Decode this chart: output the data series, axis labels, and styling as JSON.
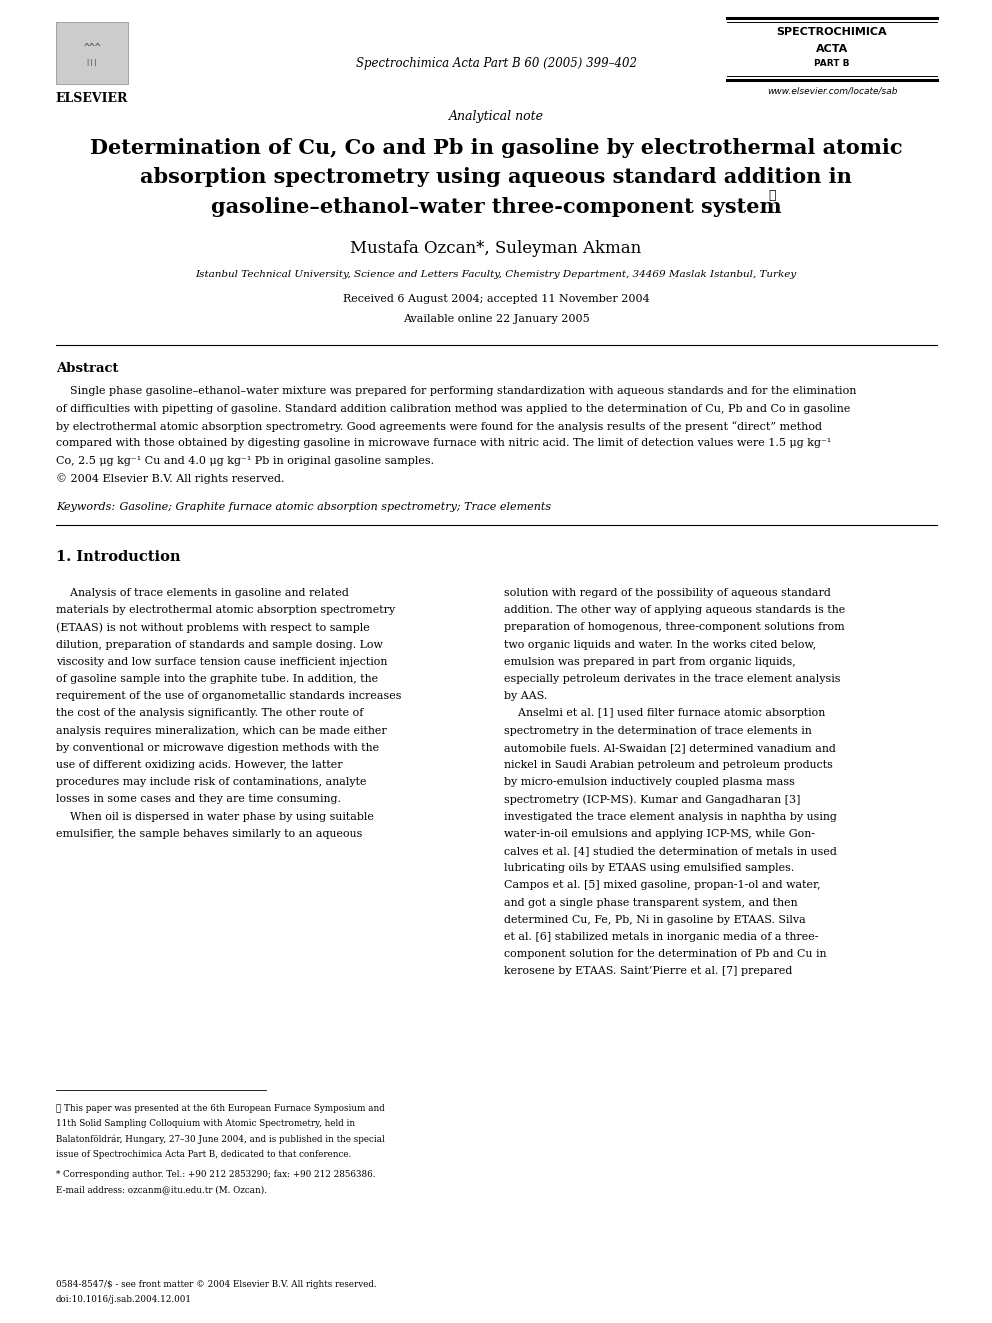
{
  "bg_color": "#ffffff",
  "page_width": 9.92,
  "page_height": 13.23,
  "journal_name_line1": "SPECTROCHIMICA",
  "journal_name_line2": "ACTA",
  "journal_name_line3": "PART B",
  "journal_citation": "Spectrochimica Acta Part B 60 (2005) 399–402",
  "website": "www.elsevier.com/locate/sab",
  "article_type": "Analytical note",
  "title_line1": "Determination of Cu, Co and Pb in gasoline by electrothermal atomic",
  "title_line2": "absorption spectrometry using aqueous standard addition in",
  "title_line3": "gasoline–ethanol–water three-component system",
  "title_star": "☆",
  "authors": "Mustafa Ozcan*, Suleyman Akman",
  "affiliation": "Istanbul Technical University, Science and Letters Faculty, Chemistry Department, 34469 Maslak Istanbul, Turkey",
  "received": "Received 6 August 2004; accepted 11 November 2004",
  "available": "Available online 22 January 2005",
  "abstract_title": "Abstract",
  "abstract_lines": [
    "    Single phase gasoline–ethanol–water mixture was prepared for performing standardization with aqueous standards and for the elimination",
    "of difficulties with pipetting of gasoline. Standard addition calibration method was applied to the determination of Cu, Pb and Co in gasoline",
    "by electrothermal atomic absorption spectrometry. Good agreements were found for the analysis results of the present “direct” method",
    "compared with those obtained by digesting gasoline in microwave furnace with nitric acid. The limit of detection values were 1.5 μg kg⁻¹",
    "Co, 2.5 μg kg⁻¹ Cu and 4.0 μg kg⁻¹ Pb in original gasoline samples.",
    "© 2004 Elsevier B.V. All rights reserved."
  ],
  "keywords_italic": "Keywords:",
  "keywords_rest": " Gasoline; Graphite furnace atomic absorption spectrometry; Trace elements",
  "section1_title": "1. Introduction",
  "left_col": [
    "    Analysis of trace elements in gasoline and related",
    "materials by electrothermal atomic absorption spectrometry",
    "(ETAAS) is not without problems with respect to sample",
    "dilution, preparation of standards and sample dosing. Low",
    "viscosity and low surface tension cause inefficient injection",
    "of gasoline sample into the graphite tube. In addition, the",
    "requirement of the use of organometallic standards increases",
    "the cost of the analysis significantly. The other route of",
    "analysis requires mineralization, which can be made either",
    "by conventional or microwave digestion methods with the",
    "use of different oxidizing acids. However, the latter",
    "procedures may include risk of contaminations, analyte",
    "losses in some cases and they are time consuming.",
    "    When oil is dispersed in water phase by using suitable",
    "emulsifier, the sample behaves similarly to an aqueous"
  ],
  "right_col": [
    "solution with regard of the possibility of aqueous standard",
    "addition. The other way of applying aqueous standards is the",
    "preparation of homogenous, three-component solutions from",
    "two organic liquids and water. In the works cited below,",
    "emulsion was prepared in part from organic liquids,",
    "especially petroleum derivates in the trace element analysis",
    "by AAS.",
    "    Anselmi et al. [1] used filter furnace atomic absorption",
    "spectrometry in the determination of trace elements in",
    "automobile fuels. Al-Swaidan [2] determined vanadium and",
    "nickel in Saudi Arabian petroleum and petroleum products",
    "by micro-emulsion inductively coupled plasma mass",
    "spectrometry (ICP-MS). Kumar and Gangadharan [3]",
    "investigated the trace element analysis in naphtha by using",
    "water-in-oil emulsions and applying ICP-MS, while Gon-",
    "calves et al. [4] studied the determination of metals in used",
    "lubricating oils by ETAAS using emulsified samples.",
    "Campos et al. [5] mixed gasoline, propan-1-ol and water,",
    "and got a single phase transparent system, and then",
    "determined Cu, Fe, Pb, Ni in gasoline by ETAAS. Silva",
    "et al. [6] stabilized metals in inorganic media of a three-",
    "component solution for the determination of Pb and Cu in",
    "kerosene by ETAAS. Saint’Pierre et al. [7] prepared"
  ],
  "footnote_star_lines": [
    "★ This paper was presented at the 6th European Furnace Symposium and",
    "11th Solid Sampling Colloquium with Atomic Spectrometry, held in",
    "Balatonföldrár, Hungary, 27–30 June 2004, and is published in the special",
    "issue of Spectrochimica Acta Part B, dedicated to that conference."
  ],
  "footnote_corresponding": "* Corresponding author. Tel.: +90 212 2853290; fax: +90 212 2856386.",
  "footnote_email": "E-mail address: ozcanm@itu.edu.tr (M. Ozcan).",
  "footer_issn": "0584-8547/$ - see front matter © 2004 Elsevier B.V. All rights reserved.",
  "footer_doi": "doi:10.1016/j.sab.2004.12.001"
}
